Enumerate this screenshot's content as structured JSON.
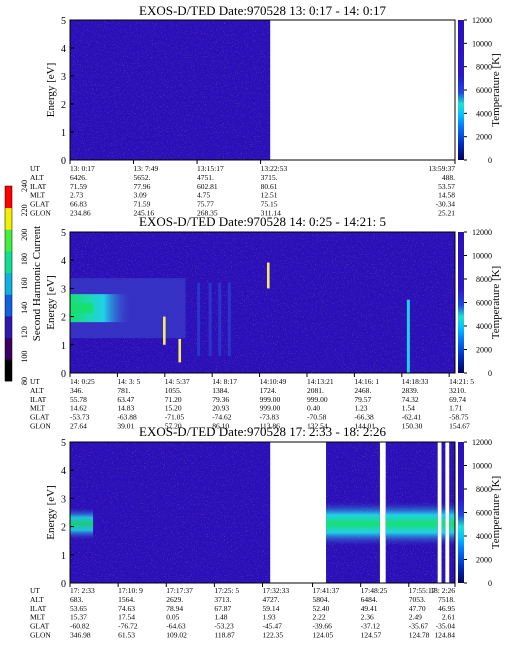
{
  "colors": {
    "background_low": "#2a10b8",
    "background_mid": "#3a3ac8",
    "empty": "#ffffff",
    "band_cyan": "#22d0e8",
    "band_green": "#18e070",
    "band_yellow": "#f4ec60",
    "speck_red": "#c0304a"
  },
  "side_colorbar": {
    "label": "Second Harmonic Current",
    "ticks": [
      "80",
      "100",
      "120",
      "140",
      "160",
      "180",
      "200",
      "220",
      "240"
    ],
    "colors": [
      "#000000",
      "#3a0060",
      "#3018b0",
      "#1060e0",
      "#10b0e0",
      "#10e090",
      "#40f040",
      "#f0f000",
      "#ff0000"
    ]
  },
  "chart_data": [
    {
      "type": "heatmap",
      "title": "EXOS-D/TED   Date:970528  13: 0:17 - 14: 0:17",
      "ylabel": "Energy [eV]",
      "y2label": "Temperature [K]",
      "ylim": [
        0,
        5
      ],
      "y2lim": [
        0,
        12000
      ],
      "yticks": [
        "0",
        "1",
        "2",
        "3",
        "4",
        "5"
      ],
      "y2ticks": [
        "0",
        "2000",
        "4000",
        "6000",
        "8000",
        "10000",
        "12000"
      ],
      "data_coverage": [
        [
          0.0,
          0.52
        ]
      ],
      "orbit_table": {
        "row_labels": [
          "UT",
          "ALT",
          "ILAT",
          "MLT",
          "GLAT",
          "GLON"
        ],
        "columns": [
          {
            "pos": 0.0,
            "values": [
              "13: 0:17",
              "6426.",
              "71.59",
              "2.73",
              "66.83",
              "234.86"
            ]
          },
          {
            "pos": 0.165,
            "values": [
              "13: 7:49",
              "5652.",
              "77.96",
              "3.09",
              "71.59",
              "245.16"
            ]
          },
          {
            "pos": 0.33,
            "values": [
              "13:15:17",
              "4751.",
              "602.81",
              "4.75",
              "75.77",
              "268.35"
            ]
          },
          {
            "pos": 0.495,
            "values": [
              "13:22:53",
              "3715.",
              "80.61",
              "12.51",
              "75.15",
              "311.14"
            ]
          },
          {
            "pos": 1.0,
            "values": [
              "13:59:37",
              "488.",
              "53.57",
              "14.58",
              "-30.34",
              "25.21"
            ]
          }
        ]
      }
    },
    {
      "type": "heatmap",
      "title": "EXOS-D/TED   Date:970528  14: 0:25 - 14:21: 5",
      "ylabel": "Energy [eV]",
      "y2label": "Temperature [K]",
      "ylim": [
        0,
        5
      ],
      "y2lim": [
        0,
        12000
      ],
      "yticks": [
        "0",
        "1",
        "2",
        "3",
        "4",
        "5"
      ],
      "y2ticks": [
        "0",
        "2000",
        "4000",
        "6000",
        "8000",
        "10000",
        "12000"
      ],
      "data_coverage": [
        [
          0.0,
          1.0
        ]
      ],
      "band_energy_ev": 2.3,
      "temperature_points": [
        {
          "x": 0.245,
          "k_low": 2400,
          "k_high": 4800
        },
        {
          "x": 0.285,
          "k_low": 900,
          "k_high": 2900
        },
        {
          "x": 0.515,
          "k_low": 7200,
          "k_high": 9400
        }
      ],
      "orbit_table": {
        "row_labels": [
          "UT",
          "ALT",
          "ILAT",
          "MLT",
          "GLAT",
          "GLON"
        ],
        "columns": [
          {
            "pos": 0.0,
            "values": [
              "14: 0:25",
              "346.",
              "55.78",
              "14.62",
              "-53.73",
              "27.64"
            ]
          },
          {
            "pos": 0.111,
            "values": [
              "14: 3: 5",
              "781.",
              "63.47",
              "14.83",
              "-63.88",
              "39.01"
            ]
          },
          {
            "pos": 0.222,
            "values": [
              "14: 5:37",
              "1055.",
              "71.20",
              "15.20",
              "-71.05",
              "57.20"
            ]
          },
          {
            "pos": 0.333,
            "values": [
              "14: 8:17",
              "1384.",
              "79.36",
              "20.93",
              "-74.62",
              "86.10"
            ]
          },
          {
            "pos": 0.444,
            "values": [
              "14:10:49",
              "1724.",
              "999.00",
              "999.00",
              "-73.83",
              "113.86"
            ]
          },
          {
            "pos": 0.555,
            "values": [
              "14:13:21",
              "2081.",
              "999.00",
              "0.40",
              "-70.58",
              "132.54"
            ]
          },
          {
            "pos": 0.666,
            "values": [
              "14:16: 1",
              "2468.",
              "79.57",
              "1.23",
              "-66.38",
              "144.01"
            ]
          },
          {
            "pos": 0.777,
            "values": [
              "14:18:33",
              "2839.",
              "74.32",
              "1.54",
              "-62.41",
              "150.30"
            ]
          },
          {
            "pos": 0.888,
            "values": [
              "14:21: 5",
              "3210.",
              "69.74",
              "1.71",
              "-58.75",
              "154.67"
            ]
          }
        ]
      }
    },
    {
      "type": "heatmap",
      "title": "EXOS-D/TED   Date:970528  17: 2:33 - 18: 2:26",
      "ylabel": "Energy [eV]",
      "y2label": "Temperature [K]",
      "ylim": [
        0,
        5
      ],
      "y2lim": [
        0,
        12000
      ],
      "yticks": [
        "0",
        "1",
        "2",
        "3",
        "4",
        "5"
      ],
      "y2ticks": [
        "0",
        "2000",
        "4000",
        "6000",
        "8000",
        "10000",
        "12000"
      ],
      "data_coverage": [
        [
          0.0,
          0.52
        ],
        [
          0.665,
          0.805
        ],
        [
          0.82,
          0.955
        ],
        [
          0.965,
          0.975
        ],
        [
          0.985,
          1.0
        ]
      ],
      "band_energy_ev": 2.1,
      "orbit_table": {
        "row_labels": [
          "UT",
          "ALT",
          "ILAT",
          "MLT",
          "GLAT",
          "GLON"
        ],
        "columns": [
          {
            "pos": 0.0,
            "values": [
              "17: 2:33",
              "683.",
              "53.65",
              "15.37",
              "-60.82",
              "346.98"
            ]
          },
          {
            "pos": 0.125,
            "values": [
              "17:10: 9",
              "1564.",
              "74.63",
              "17.54",
              "-76.72",
              "61.53"
            ]
          },
          {
            "pos": 0.25,
            "values": [
              "17:17:37",
              "2629.",
              "78.94",
              "0.05",
              "-64.63",
              "109.02"
            ]
          },
          {
            "pos": 0.375,
            "values": [
              "17:25: 5",
              "3713.",
              "67.87",
              "1.48",
              "-53.23",
              "118.87"
            ]
          },
          {
            "pos": 0.5,
            "values": [
              "17:32:33",
              "4727.",
              "59.14",
              "1.93",
              "-45.47",
              "122.35"
            ]
          },
          {
            "pos": 0.63,
            "values": [
              "17:41:37",
              "5804.",
              "52.40",
              "2.22",
              "-39.66",
              "124.05"
            ]
          },
          {
            "pos": 0.755,
            "values": [
              "17:48:25",
              "6484.",
              "49.41",
              "2.36",
              "-37.12",
              "124.57"
            ]
          },
          {
            "pos": 0.88,
            "values": [
              "17:55:17",
              "7053.",
              "47.70",
              "2.49",
              "-35.67",
              "124.78"
            ]
          },
          {
            "pos": 1.0,
            "values": [
              "18: 2:26",
              "7518.",
              "46.95",
              "2.61",
              "-35.04",
              "124.84"
            ]
          }
        ]
      }
    }
  ]
}
